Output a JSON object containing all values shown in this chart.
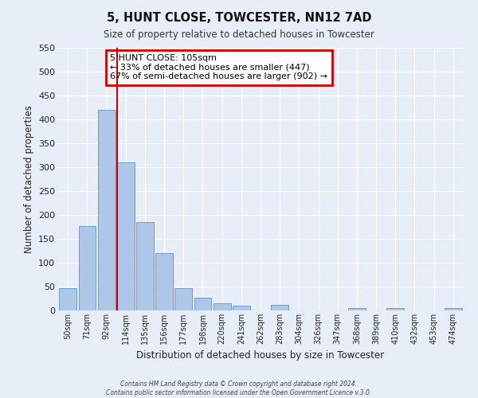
{
  "title": "5, HUNT CLOSE, TOWCESTER, NN12 7AD",
  "subtitle": "Size of property relative to detached houses in Towcester",
  "xlabel": "Distribution of detached houses by size in Towcester",
  "ylabel": "Number of detached properties",
  "bar_labels": [
    "50sqm",
    "71sqm",
    "92sqm",
    "114sqm",
    "135sqm",
    "156sqm",
    "177sqm",
    "198sqm",
    "220sqm",
    "241sqm",
    "262sqm",
    "283sqm",
    "304sqm",
    "326sqm",
    "347sqm",
    "368sqm",
    "389sqm",
    "410sqm",
    "432sqm",
    "453sqm",
    "474sqm"
  ],
  "bar_values": [
    47,
    177,
    420,
    310,
    185,
    120,
    47,
    27,
    15,
    10,
    0,
    11,
    0,
    0,
    0,
    5,
    0,
    5,
    0,
    0,
    5
  ],
  "bar_color": "#aec6e8",
  "bar_edge_color": "#6aa0cc",
  "ylim": [
    0,
    550
  ],
  "yticks": [
    0,
    50,
    100,
    150,
    200,
    250,
    300,
    350,
    400,
    450,
    500,
    550
  ],
  "vline_color": "#cc0000",
  "annotation_title": "5 HUNT CLOSE: 105sqm",
  "annotation_line1": "← 33% of detached houses are smaller (447)",
  "annotation_line2": "67% of semi-detached houses are larger (902) →",
  "annotation_box_color": "#cc0000",
  "bg_color": "#e8eef8",
  "grid_color": "#ffffff",
  "footer1": "Contains HM Land Registry data © Crown copyright and database right 2024.",
  "footer2": "Contains public sector information licensed under the Open Government Licence v.3.0."
}
